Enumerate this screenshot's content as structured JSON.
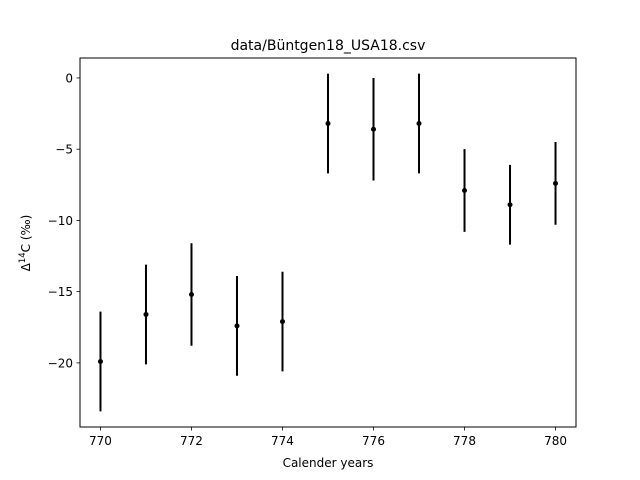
{
  "chart_data": {
    "type": "scatter",
    "title": "data/Büntgen18_USA18.csv",
    "xlabel": "Calender years",
    "ylabel_parts": {
      "delta": "Δ",
      "sup": "14",
      "rest": "C (‰)"
    },
    "xlim": [
      769.55,
      780.45
    ],
    "ylim": [
      -24.5,
      1.4
    ],
    "xticks": [
      770,
      772,
      774,
      776,
      778,
      780
    ],
    "xtick_labels": [
      "770",
      "772",
      "774",
      "776",
      "778",
      "780"
    ],
    "yticks": [
      0,
      -5,
      -10,
      -15,
      -20
    ],
    "ytick_labels": [
      "0",
      "−5",
      "−10",
      "−15",
      "−20"
    ],
    "grid": false,
    "series": [
      {
        "x": [
          770,
          771,
          772,
          773,
          774,
          775,
          776,
          777,
          778,
          779,
          780
        ],
        "y": [
          -19.9,
          -16.6,
          -15.2,
          -17.4,
          -17.1,
          -3.2,
          -3.6,
          -3.2,
          -7.9,
          -8.9,
          -7.4
        ],
        "yerr": [
          3.5,
          3.5,
          3.6,
          3.5,
          3.5,
          3.5,
          3.6,
          3.5,
          2.9,
          2.8,
          2.9
        ]
      }
    ],
    "colors": {
      "marker": "#000000",
      "errorbar": "#000000",
      "axes": "#000000"
    }
  }
}
